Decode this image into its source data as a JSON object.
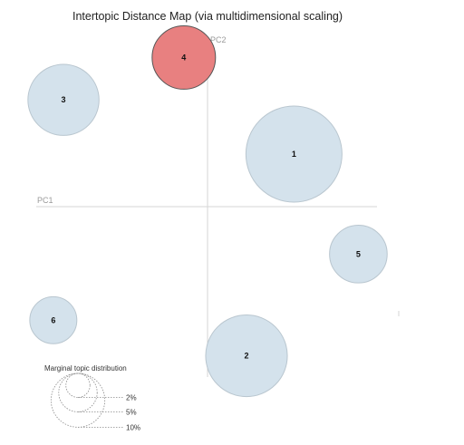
{
  "chart_data": {
    "type": "scatter",
    "title": "Intertopic Distance Map (via multidimensional scaling)",
    "xlabel": "PC1",
    "ylabel": "PC2",
    "xlim": [
      -1,
      1
    ],
    "ylim": [
      -1,
      1
    ],
    "grid": false,
    "selected_topic": "4",
    "colors": {
      "default": "#d4e2ec",
      "selected": "#e88080"
    },
    "topics": [
      {
        "label": "1",
        "x": 0.51,
        "y": 0.31,
        "size": 1.0
      },
      {
        "label": "2",
        "x": 0.23,
        "y": -0.88,
        "size": 0.85
      },
      {
        "label": "3",
        "x": -0.85,
        "y": 0.63,
        "size": 0.74
      },
      {
        "label": "4",
        "x": -0.14,
        "y": 0.88,
        "size": 0.66
      },
      {
        "label": "5",
        "x": 0.89,
        "y": -0.28,
        "size": 0.6
      },
      {
        "label": "6",
        "x": -0.91,
        "y": -0.67,
        "size": 0.49
      }
    ],
    "legend": {
      "title": "Marginal topic distribution",
      "items": [
        {
          "label": "2%",
          "size": 0.25
        },
        {
          "label": "5%",
          "size": 0.4
        },
        {
          "label": "10%",
          "size": 0.56
        }
      ]
    }
  }
}
